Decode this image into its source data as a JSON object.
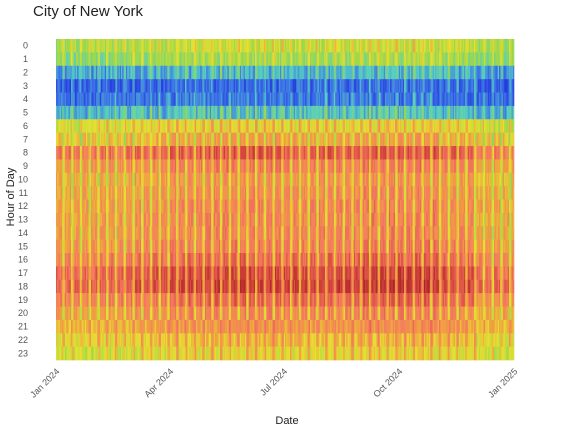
{
  "chart_data": {
    "type": "heatmap",
    "title": "City of New York",
    "xlabel": "Date",
    "ylabel": "Hour of Day",
    "x_range": [
      "2024-01-01",
      "2024-12-31"
    ],
    "x_ticks": [
      {
        "label": "Jan 2024",
        "date": "2024-01-01"
      },
      {
        "label": "Apr 2024",
        "date": "2024-04-01"
      },
      {
        "label": "Jul 2024",
        "date": "2024-07-01"
      },
      {
        "label": "Oct 2024",
        "date": "2024-10-01"
      },
      {
        "label": "Jan 2025",
        "date": "2025-01-01"
      }
    ],
    "y_categories": [
      "0",
      "1",
      "2",
      "3",
      "4",
      "5",
      "6",
      "7",
      "8",
      "9",
      "10",
      "11",
      "12",
      "13",
      "14",
      "15",
      "16",
      "17",
      "18",
      "19",
      "20",
      "21",
      "22",
      "23"
    ],
    "color_scale": [
      "#1f2fd8",
      "#3b6fe8",
      "#55cfc0",
      "#9dd84a",
      "#e6e030",
      "#f0a040",
      "#f47860",
      "#d84a40",
      "#a82020"
    ],
    "hour_profile": [
      0.42,
      0.36,
      0.2,
      0.1,
      0.12,
      0.22,
      0.48,
      0.62,
      0.82,
      0.72,
      0.66,
      0.68,
      0.7,
      0.7,
      0.7,
      0.72,
      0.78,
      0.86,
      0.88,
      0.78,
      0.7,
      0.62,
      0.54,
      0.48
    ],
    "monthly_level": [
      {
        "month": "2024-01",
        "level": 0.92
      },
      {
        "month": "2024-02",
        "level": 0.94
      },
      {
        "month": "2024-03",
        "level": 0.98
      },
      {
        "month": "2024-04",
        "level": 1.02
      },
      {
        "month": "2024-05",
        "level": 1.04
      },
      {
        "month": "2024-06",
        "level": 1.04
      },
      {
        "month": "2024-07",
        "level": 1.02
      },
      {
        "month": "2024-08",
        "level": 1.03
      },
      {
        "month": "2024-09",
        "level": 1.06
      },
      {
        "month": "2024-10",
        "level": 1.06
      },
      {
        "month": "2024-11",
        "level": 1.0
      },
      {
        "month": "2024-12",
        "level": 0.9
      }
    ],
    "weekend_factor_day": 0.72,
    "weekend_factor_night": 1.15,
    "grid": false,
    "legend": "none"
  }
}
